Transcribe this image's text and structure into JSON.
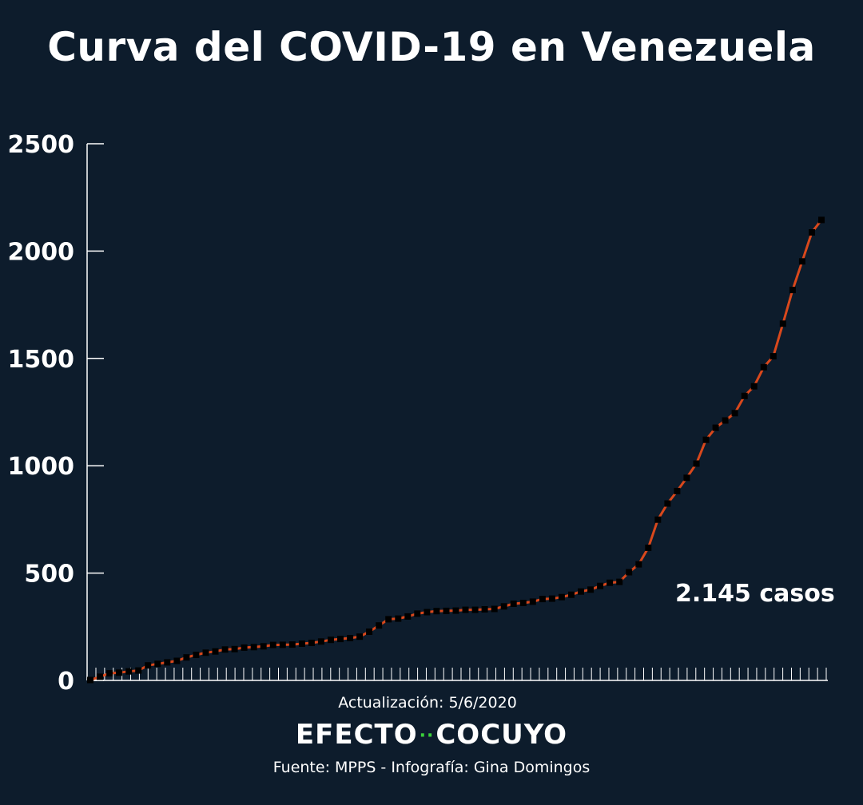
{
  "title": "Curva del COVID-19 en Venezuela",
  "update_text": "Actualización: 5/6/2020",
  "brand": {
    "left": "EFECTO",
    "dots": "··",
    "right": "COCUYO"
  },
  "credits": "Fuente: MPPS - Infografía: Gina Domingos",
  "colors": {
    "background": "#0d1c2c",
    "line": "#d9481c",
    "marker": "#000000",
    "axis": "#ffffff"
  },
  "chart_data": {
    "type": "line",
    "title": "Curva del COVID-19 en Venezuela",
    "xlabel": "",
    "ylabel": "",
    "ylim": [
      0,
      2500
    ],
    "yticks": [
      0,
      500,
      1000,
      1500,
      2000,
      2500
    ],
    "ytick_labels": [
      "0",
      "500",
      "1000",
      "1500",
      "2000",
      "2500"
    ],
    "x_tick_count": 85,
    "grid": false,
    "annotation": "2.145 casos",
    "series": [
      {
        "values": [
          2,
          17,
          33,
          36,
          42,
          46,
          70,
          77,
          84,
          91,
          107,
          119,
          129,
          135,
          144,
          146,
          153,
          155,
          159,
          165,
          166,
          167,
          171,
          175,
          181,
          189,
          193,
          197,
          204,
          227,
          256,
          285,
          288,
          298,
          311,
          318,
          323,
          324,
          325,
          329,
          329,
          331,
          333,
          345,
          357,
          361,
          367,
          379,
          381,
          388,
          399,
          414,
          423,
          440,
          455,
          459,
          504,
          541,
          618,
          749,
          824,
          882,
          944,
          1010,
          1121,
          1177,
          1211,
          1245,
          1325,
          1370,
          1459,
          1510,
          1662,
          1819,
          1952,
          2087,
          2145
        ]
      }
    ]
  }
}
